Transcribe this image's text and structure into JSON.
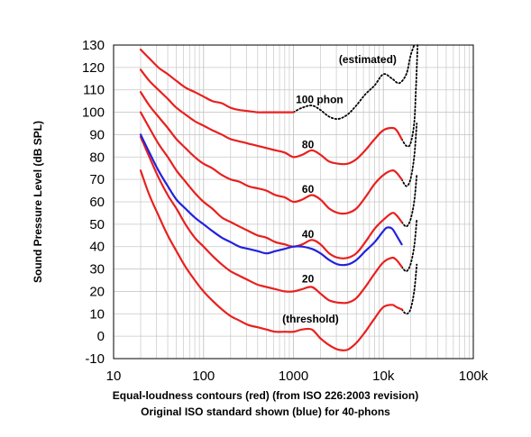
{
  "chart_data": {
    "type": "line",
    "title": "",
    "xlabel": "",
    "ylabel": "Sound Pressure Level (dB SPL)",
    "xscale": "log",
    "xlim": [
      10,
      100000
    ],
    "ylim": [
      -10,
      130
    ],
    "x_ticks": [
      10,
      100,
      1000,
      10000,
      100000
    ],
    "x_tick_labels": [
      "10",
      "100",
      "1000",
      "10k",
      "100k"
    ],
    "y_ticks": [
      -10,
      0,
      10,
      20,
      30,
      40,
      50,
      60,
      70,
      80,
      90,
      100,
      110,
      120,
      130
    ],
    "grid": true,
    "colors": {
      "iso2003": "#e8201e",
      "iso_original": "#2222dd",
      "estimated": "#000000",
      "grid": "#c8c8c8"
    },
    "captions": [
      "Equal-loudness contours (red) (from ISO 226:2003 revision)",
      "Original ISO standard shown (blue) for 40-phons"
    ],
    "series": [
      {
        "label": "(threshold)",
        "style": "red",
        "points": [
          [
            20,
            74
          ],
          [
            25,
            63
          ],
          [
            31.5,
            54
          ],
          [
            40,
            45
          ],
          [
            50,
            38
          ],
          [
            63,
            31
          ],
          [
            80,
            25
          ],
          [
            100,
            20
          ],
          [
            125,
            16
          ],
          [
            160,
            12
          ],
          [
            200,
            9
          ],
          [
            250,
            7
          ],
          [
            315,
            5
          ],
          [
            400,
            4
          ],
          [
            500,
            3
          ],
          [
            630,
            2
          ],
          [
            800,
            2
          ],
          [
            1000,
            2
          ],
          [
            1250,
            3
          ],
          [
            1600,
            3
          ],
          [
            2000,
            -1
          ],
          [
            2500,
            -4
          ],
          [
            3150,
            -6
          ],
          [
            4000,
            -6
          ],
          [
            5000,
            -3
          ],
          [
            6300,
            2
          ],
          [
            8000,
            8
          ],
          [
            10000,
            13
          ],
          [
            12500,
            14
          ],
          [
            14000,
            13
          ],
          [
            16000,
            12
          ]
        ]
      },
      {
        "label": "20",
        "style": "red",
        "points": [
          [
            20,
            89
          ],
          [
            25,
            80
          ],
          [
            31.5,
            71
          ],
          [
            40,
            63
          ],
          [
            50,
            57
          ],
          [
            63,
            50
          ],
          [
            80,
            44
          ],
          [
            100,
            40
          ],
          [
            125,
            36
          ],
          [
            160,
            32
          ],
          [
            200,
            29
          ],
          [
            250,
            27
          ],
          [
            315,
            25
          ],
          [
            400,
            23
          ],
          [
            500,
            22
          ],
          [
            630,
            21
          ],
          [
            800,
            20
          ],
          [
            1000,
            20
          ],
          [
            1250,
            21
          ],
          [
            1600,
            22
          ],
          [
            2000,
            19
          ],
          [
            2500,
            16
          ],
          [
            3150,
            15
          ],
          [
            4000,
            15
          ],
          [
            5000,
            17
          ],
          [
            6300,
            22
          ],
          [
            8000,
            28
          ],
          [
            10000,
            33
          ],
          [
            12500,
            35
          ],
          [
            14000,
            34
          ],
          [
            16000,
            31
          ]
        ]
      },
      {
        "label": "40",
        "style": "red",
        "points": [
          [
            20,
            100
          ],
          [
            25,
            93
          ],
          [
            31.5,
            86
          ],
          [
            40,
            80
          ],
          [
            50,
            74
          ],
          [
            63,
            69
          ],
          [
            80,
            64
          ],
          [
            100,
            60
          ],
          [
            125,
            57
          ],
          [
            160,
            53
          ],
          [
            200,
            51
          ],
          [
            250,
            49
          ],
          [
            315,
            47
          ],
          [
            400,
            45
          ],
          [
            500,
            44
          ],
          [
            630,
            42
          ],
          [
            800,
            41
          ],
          [
            1000,
            40
          ],
          [
            1250,
            41
          ],
          [
            1600,
            43
          ],
          [
            2000,
            41
          ],
          [
            2500,
            37
          ],
          [
            3150,
            35
          ],
          [
            4000,
            35
          ],
          [
            5000,
            37
          ],
          [
            6300,
            42
          ],
          [
            8000,
            48
          ],
          [
            10000,
            52
          ],
          [
            12500,
            55
          ],
          [
            14000,
            54
          ],
          [
            16000,
            51
          ]
        ]
      },
      {
        "label": "60",
        "style": "red",
        "points": [
          [
            20,
            109
          ],
          [
            25,
            103
          ],
          [
            31.5,
            98
          ],
          [
            40,
            93
          ],
          [
            50,
            88
          ],
          [
            63,
            84
          ],
          [
            80,
            80
          ],
          [
            100,
            77
          ],
          [
            125,
            75
          ],
          [
            160,
            72
          ],
          [
            200,
            70
          ],
          [
            250,
            69
          ],
          [
            315,
            67
          ],
          [
            400,
            66
          ],
          [
            500,
            65
          ],
          [
            630,
            63
          ],
          [
            800,
            62
          ],
          [
            1000,
            60
          ],
          [
            1250,
            61
          ],
          [
            1600,
            63
          ],
          [
            2000,
            61
          ],
          [
            2500,
            57
          ],
          [
            3150,
            55
          ],
          [
            4000,
            55
          ],
          [
            5000,
            57
          ],
          [
            6300,
            62
          ],
          [
            8000,
            68
          ],
          [
            10000,
            72
          ],
          [
            12500,
            74
          ],
          [
            14000,
            73
          ],
          [
            16000,
            70
          ]
        ]
      },
      {
        "label": "80",
        "style": "red",
        "points": [
          [
            20,
            119
          ],
          [
            25,
            114
          ],
          [
            31.5,
            110
          ],
          [
            40,
            106
          ],
          [
            50,
            102
          ],
          [
            63,
            99
          ],
          [
            80,
            96
          ],
          [
            100,
            94
          ],
          [
            125,
            92
          ],
          [
            160,
            90
          ],
          [
            200,
            88
          ],
          [
            250,
            87
          ],
          [
            315,
            86
          ],
          [
            400,
            85
          ],
          [
            500,
            84
          ],
          [
            630,
            83
          ],
          [
            800,
            82
          ],
          [
            1000,
            80
          ],
          [
            1250,
            81
          ],
          [
            1600,
            83
          ],
          [
            2000,
            81
          ],
          [
            2500,
            78
          ],
          [
            3150,
            77
          ],
          [
            4000,
            77
          ],
          [
            5000,
            79
          ],
          [
            6300,
            83
          ],
          [
            8000,
            88
          ],
          [
            10000,
            92
          ],
          [
            12500,
            93
          ],
          [
            14000,
            92
          ],
          [
            16000,
            88
          ]
        ]
      },
      {
        "label": "100 phon",
        "style": "red",
        "points": [
          [
            20,
            128
          ],
          [
            25,
            124
          ],
          [
            31.5,
            120
          ],
          [
            40,
            117
          ],
          [
            50,
            114
          ],
          [
            63,
            111
          ],
          [
            80,
            109
          ],
          [
            100,
            107
          ],
          [
            125,
            105
          ],
          [
            160,
            104
          ],
          [
            200,
            102
          ],
          [
            250,
            101
          ],
          [
            315,
            100.5
          ],
          [
            400,
            100
          ],
          [
            500,
            100
          ],
          [
            630,
            100
          ],
          [
            800,
            100
          ],
          [
            1000,
            100
          ]
        ]
      },
      {
        "label": "",
        "style": "dotted",
        "points": [
          [
            1000,
            100
          ],
          [
            1250,
            102
          ],
          [
            1600,
            103
          ],
          [
            2000,
            101
          ],
          [
            2500,
            98
          ],
          [
            3150,
            97
          ],
          [
            4000,
            99
          ],
          [
            5000,
            103
          ],
          [
            6300,
            108
          ],
          [
            8000,
            112
          ],
          [
            10000,
            117
          ],
          [
            12500,
            115
          ],
          [
            15000,
            113
          ],
          [
            18000,
            117
          ],
          [
            20000,
            125
          ],
          [
            22000,
            130
          ]
        ]
      },
      {
        "label": "",
        "style": "dotted",
        "points": [
          [
            16000,
            88
          ],
          [
            18000,
            85
          ],
          [
            20000,
            86
          ],
          [
            22000,
            95
          ],
          [
            23000,
            110
          ],
          [
            24000,
            130
          ]
        ]
      },
      {
        "label": "",
        "style": "dotted",
        "points": [
          [
            16000,
            70
          ],
          [
            18000,
            67
          ],
          [
            20000,
            70
          ],
          [
            22000,
            80
          ],
          [
            23500,
            95
          ]
        ]
      },
      {
        "label": "",
        "style": "dotted",
        "points": [
          [
            16000,
            51
          ],
          [
            18000,
            49
          ],
          [
            20000,
            52
          ],
          [
            22000,
            60
          ],
          [
            23500,
            72
          ]
        ]
      },
      {
        "label": "",
        "style": "dotted",
        "points": [
          [
            16000,
            31
          ],
          [
            18000,
            29
          ],
          [
            20000,
            32
          ],
          [
            22000,
            40
          ],
          [
            23500,
            52
          ]
        ]
      },
      {
        "label": "",
        "style": "dotted",
        "points": [
          [
            16000,
            12
          ],
          [
            18000,
            10
          ],
          [
            20000,
            12
          ],
          [
            22000,
            20
          ],
          [
            23500,
            32
          ]
        ]
      },
      {
        "label": "",
        "style": "blue",
        "points": [
          [
            20,
            90
          ],
          [
            25,
            82
          ],
          [
            31.5,
            74
          ],
          [
            40,
            67
          ],
          [
            50,
            61
          ],
          [
            63,
            57
          ],
          [
            80,
            53
          ],
          [
            100,
            50
          ],
          [
            125,
            47
          ],
          [
            160,
            44
          ],
          [
            200,
            42
          ],
          [
            250,
            40
          ],
          [
            315,
            39
          ],
          [
            400,
            38
          ],
          [
            500,
            37
          ],
          [
            630,
            38
          ],
          [
            800,
            39
          ],
          [
            1000,
            40
          ],
          [
            1250,
            40
          ],
          [
            1600,
            39
          ],
          [
            2000,
            37
          ],
          [
            2500,
            34
          ],
          [
            3150,
            32
          ],
          [
            4000,
            32
          ],
          [
            5000,
            34
          ],
          [
            6300,
            38
          ],
          [
            8000,
            42
          ],
          [
            10000,
            47
          ],
          [
            11000,
            48.5
          ],
          [
            12500,
            48
          ],
          [
            14000,
            45
          ],
          [
            16000,
            41
          ]
        ]
      }
    ],
    "annotations": [
      {
        "text": "(estimated)",
        "x": 6700,
        "y": 122
      },
      {
        "text": "100 phon",
        "x": 1950,
        "y": 104
      },
      {
        "text": "80",
        "x": 1450,
        "y": 84
      },
      {
        "text": "60",
        "x": 1450,
        "y": 64
      },
      {
        "text": "40",
        "x": 1450,
        "y": 44
      },
      {
        "text": "20",
        "x": 1450,
        "y": 24
      },
      {
        "text": "(threshold)",
        "x": 1550,
        "y": 6
      }
    ]
  }
}
